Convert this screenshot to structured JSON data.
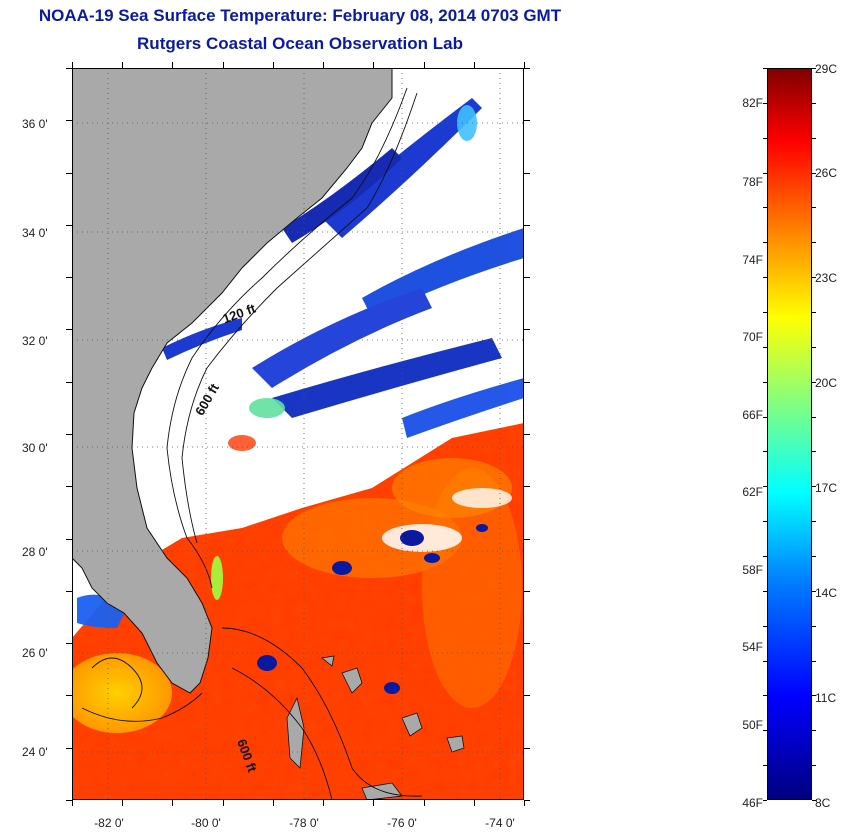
{
  "title": {
    "line1": "NOAA-19 Sea Surface Temperature:  February 08, 2014 0703 GMT",
    "line2": "Rutgers Coastal Ocean Observation Lab"
  },
  "map": {
    "lat_labels": [
      "36 0'",
      "34 0'",
      "32 0'",
      "30 0'",
      "28 0'",
      "26 0'",
      "24 0'"
    ],
    "lon_labels": [
      "-82 0'",
      "-80 0'",
      "-78 0'",
      "-76 0'",
      "-74 0'"
    ],
    "contour_labels": [
      "120 ft",
      "600 ft",
      "600 ft"
    ],
    "colors": {
      "land": "#a9a9a9",
      "cloud": "#ffffff",
      "gridline": "#555555"
    }
  },
  "colorbar": {
    "fahrenheit": [
      "82F",
      "78F",
      "74F",
      "70F",
      "66F",
      "62F",
      "58F",
      "54F",
      "50F",
      "46F"
    ],
    "celsius": [
      "29C",
      "26C",
      "23C",
      "20C",
      "17C",
      "14C",
      "11C",
      "8C"
    ],
    "min_c": 8,
    "max_c": 29
  }
}
